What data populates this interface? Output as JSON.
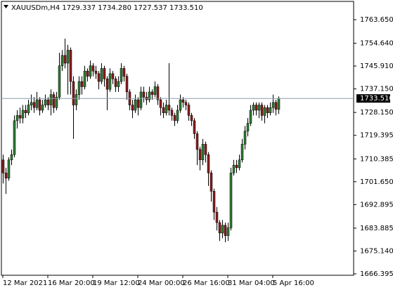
{
  "chart_data": {
    "type": "candlestick",
    "title": "XAUUSDm,H4  1729.337 1734.280 1727.537 1733.510",
    "categories": [
      "12 Mar 2021",
      null,
      null,
      null,
      null,
      null,
      null,
      null,
      null,
      null,
      null,
      null,
      null,
      null,
      null,
      null,
      "16 Mar 20:00",
      null,
      null,
      null,
      null,
      null,
      null,
      null,
      null,
      null,
      null,
      null,
      null,
      null,
      null,
      null,
      "19 Mar 12:00",
      null,
      null,
      null,
      null,
      null,
      null,
      null,
      null,
      null,
      null,
      null,
      null,
      null,
      null,
      null,
      "24 Mar 00:00",
      null,
      null,
      null,
      null,
      null,
      null,
      null,
      null,
      null,
      null,
      null,
      null,
      null,
      null,
      null,
      "26 Mar 16:00",
      null,
      null,
      null,
      null,
      null,
      null,
      null,
      null,
      null,
      null,
      null,
      null,
      null,
      null,
      null,
      "31 Mar 04:00",
      null,
      null,
      null,
      null,
      null,
      null,
      null,
      null,
      null,
      null,
      null,
      null,
      null,
      null,
      null,
      "5 Apr 16:00",
      null,
      null
    ],
    "open": [
      1710,
      1705,
      1703,
      1710,
      1712,
      1725,
      1727,
      1726,
      1729,
      1728,
      1731,
      1732,
      1730,
      1733,
      1729,
      1731,
      1733,
      1731,
      1735,
      1730,
      1734,
      1746,
      1750,
      1747,
      1752,
      1740,
      1731,
      1735,
      1740,
      1738,
      1744,
      1742,
      1746,
      1744,
      1743,
      1740,
      1745,
      1741,
      1737,
      1743,
      1741,
      1738,
      1740,
      1745,
      1742,
      1736,
      1731,
      1729,
      1733,
      1730,
      1736,
      1734,
      1733,
      1736,
      1735,
      1738,
      1733,
      1730,
      1728,
      1731,
      1729,
      1727,
      1725,
      1729,
      1733,
      1732,
      1731,
      1727,
      1725,
      1720,
      1714,
      1710,
      1716,
      1712,
      1705,
      1698,
      1690,
      1686,
      1682,
      1685,
      1681,
      1684,
      1705,
      1708,
      1707,
      1710,
      1716,
      1721,
      1724,
      1729,
      1731,
      1729,
      1731,
      1727,
      1730,
      1728,
      1730,
      1732,
      1729.337
    ],
    "high": [
      1712,
      1707,
      1711,
      1714,
      1727,
      1729,
      1730,
      1731,
      1731,
      1733,
      1735,
      1734,
      1736,
      1734,
      1733,
      1735,
      1734,
      1737,
      1736,
      1736,
      1751,
      1752,
      1756.4,
      1754,
      1753,
      1742,
      1737,
      1742,
      1742,
      1746,
      1745,
      1748,
      1747,
      1746,
      1744,
      1747,
      1746,
      1742,
      1745,
      1744,
      1742,
      1742,
      1747,
      1746,
      1743,
      1737,
      1733,
      1735,
      1734,
      1738,
      1738,
      1736,
      1738,
      1737,
      1740,
      1739,
      1734,
      1732,
      1733,
      1747,
      1730,
      1728,
      1731,
      1735,
      1734,
      1733,
      1732,
      1728,
      1726,
      1721,
      1715,
      1718,
      1717,
      1713,
      1706,
      1699,
      1692,
      1687,
      1687,
      1686,
      1686,
      1707,
      1710,
      1710,
      1712,
      1718,
      1723,
      1726,
      1731,
      1732,
      1732,
      1732,
      1732,
      1731,
      1731,
      1732,
      1735,
      1733,
      1734.28
    ],
    "low": [
      1701,
      1697,
      1702,
      1708,
      1711,
      1722,
      1724,
      1724,
      1726,
      1727,
      1729,
      1728,
      1729,
      1727,
      1728,
      1730,
      1729,
      1727,
      1728,
      1729,
      1733,
      1744,
      1745,
      1735,
      1735,
      1718,
      1729,
      1733,
      1735,
      1737,
      1740,
      1741,
      1742,
      1741,
      1737,
      1739,
      1738,
      1729,
      1736,
      1739,
      1736,
      1736,
      1739,
      1740,
      1733,
      1729,
      1726,
      1728,
      1727,
      1729,
      1732,
      1731,
      1732,
      1733,
      1734,
      1731,
      1727,
      1726,
      1727,
      1727,
      1725,
      1723,
      1724,
      1728,
      1730,
      1729,
      1725,
      1723,
      1718,
      1708,
      1706,
      1708,
      1709,
      1700,
      1694,
      1687,
      1683,
      1679,
      1680,
      1678.5,
      1679,
      1683,
      1704,
      1705,
      1706,
      1709,
      1714,
      1719,
      1723,
      1727,
      1727,
      1726,
      1725,
      1724,
      1726,
      1727,
      1728,
      1727,
      1727.537
    ],
    "close": [
      1705,
      1703,
      1710,
      1712,
      1725,
      1727,
      1726,
      1729,
      1728,
      1731,
      1732,
      1730,
      1733,
      1729,
      1731,
      1733,
      1731,
      1735,
      1730,
      1734,
      1746,
      1750,
      1747,
      1752,
      1740,
      1731,
      1735,
      1740,
      1738,
      1744,
      1742,
      1746,
      1744,
      1743,
      1740,
      1745,
      1741,
      1737,
      1743,
      1741,
      1738,
      1740,
      1745,
      1742,
      1736,
      1731,
      1729,
      1733,
      1730,
      1736,
      1734,
      1733,
      1736,
      1735,
      1738,
      1733,
      1730,
      1728,
      1731,
      1729,
      1727,
      1725,
      1729,
      1733,
      1732,
      1731,
      1727,
      1725,
      1720,
      1714,
      1710,
      1716,
      1712,
      1705,
      1698,
      1690,
      1686,
      1682,
      1685,
      1681,
      1684,
      1705,
      1708,
      1707,
      1710,
      1716,
      1721,
      1724,
      1729,
      1731,
      1729,
      1731,
      1727,
      1730,
      1728,
      1730,
      1732,
      1729.337,
      1733.51
    ],
    "up_color": "#2f7d32",
    "down_color": "#8b1c1c",
    "ylim": [
      1665.86,
      1770.64
    ],
    "yticks": [
      {
        "value": 1666.395,
        "label": "1666.395"
      },
      {
        "value": 1675.14,
        "label": "1675.140"
      },
      {
        "value": 1683.885,
        "label": "1683.885"
      },
      {
        "value": 1692.895,
        "label": "1692.895"
      },
      {
        "value": 1701.65,
        "label": "1701.650"
      },
      {
        "value": 1710.385,
        "label": "1710.385"
      },
      {
        "value": 1719.395,
        "label": "1719.395"
      },
      {
        "value": 1728.15,
        "label": "1728.150"
      },
      {
        "value": 1737.15,
        "label": "1737.150"
      },
      {
        "value": 1745.91,
        "label": "1745.910"
      },
      {
        "value": 1754.64,
        "label": "1754.640"
      },
      {
        "value": 1763.65,
        "label": "1763.650"
      }
    ],
    "last_price": {
      "value": 1733.51,
      "label": "1733.510"
    }
  }
}
